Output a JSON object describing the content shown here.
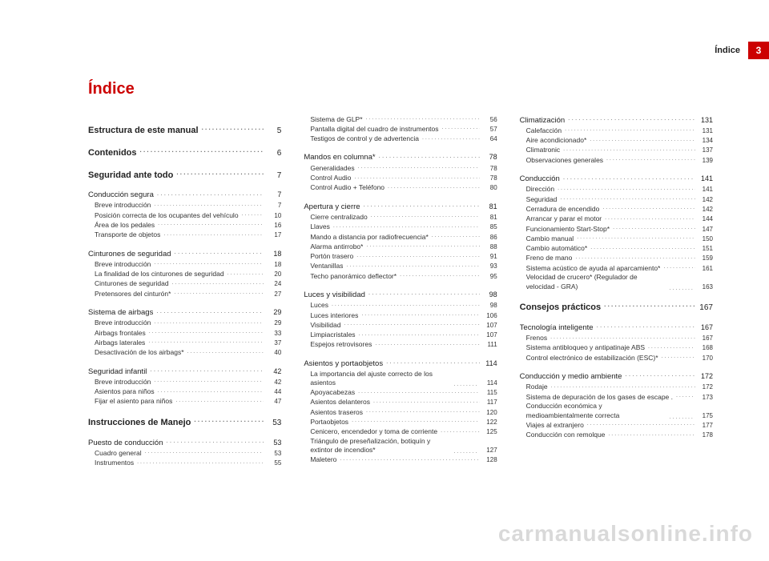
{
  "accent_color": "#cc0000",
  "page_label": "Índice",
  "page_number_box": "3",
  "title": "Índice",
  "watermark": "carmanualsonline.info",
  "columns": [
    [
      {
        "lvl": 0,
        "label": "Estructura de este manual",
        "page": "5"
      },
      {
        "lvl": 0,
        "label": "Contenidos",
        "page": "6"
      },
      {
        "lvl": 0,
        "label": "Seguridad ante todo",
        "page": "7"
      },
      {
        "lvl": 1,
        "label": "Conducción segura",
        "page": "7"
      },
      {
        "lvl": 2,
        "label": "Breve introducción",
        "page": "7"
      },
      {
        "lvl": 2,
        "label": "Posición correcta de los ocupantes del vehículo",
        "page": "10"
      },
      {
        "lvl": 2,
        "label": "Área de los pedales",
        "page": "16"
      },
      {
        "lvl": 2,
        "label": "Transporte de objetos",
        "page": "17"
      },
      {
        "lvl": 1,
        "label": "Cinturones de seguridad",
        "page": "18"
      },
      {
        "lvl": 2,
        "label": "Breve introducción",
        "page": "18"
      },
      {
        "lvl": 2,
        "label": "La finalidad de los cinturones de seguridad",
        "page": "20"
      },
      {
        "lvl": 2,
        "label": "Cinturones de seguridad",
        "page": "24"
      },
      {
        "lvl": 2,
        "label": "Pretensores del cinturón*",
        "page": "27"
      },
      {
        "lvl": 1,
        "label": "Sistema de airbags",
        "page": "29"
      },
      {
        "lvl": 2,
        "label": "Breve introducción",
        "page": "29"
      },
      {
        "lvl": 2,
        "label": "Airbags frontales",
        "page": "33"
      },
      {
        "lvl": 2,
        "label": "Airbags laterales",
        "page": "37"
      },
      {
        "lvl": 2,
        "label": "Desactivación de los airbags*",
        "page": "40"
      },
      {
        "lvl": 1,
        "label": "Seguridad infantil",
        "page": "42"
      },
      {
        "lvl": 2,
        "label": "Breve introducción",
        "page": "42"
      },
      {
        "lvl": 2,
        "label": "Asientos para niños",
        "page": "44"
      },
      {
        "lvl": 2,
        "label": "Fijar el asiento para niños",
        "page": "47"
      },
      {
        "lvl": 0,
        "label": "Instrucciones de Manejo",
        "page": "53"
      },
      {
        "lvl": 1,
        "label": "Puesto de conducción",
        "page": "53"
      },
      {
        "lvl": 2,
        "label": "Cuadro general",
        "page": "53"
      },
      {
        "lvl": 2,
        "label": "Instrumentos",
        "page": "55"
      }
    ],
    [
      {
        "lvl": 2,
        "label": "Sistema de GLP*",
        "page": "56"
      },
      {
        "lvl": 2,
        "label": "Pantalla digital del cuadro de instrumentos",
        "page": "57"
      },
      {
        "lvl": 2,
        "label": "Testigos de control y de advertencia",
        "page": "64"
      },
      {
        "lvl": 1,
        "label": "Mandos en columna*",
        "page": "78"
      },
      {
        "lvl": 2,
        "label": "Generalidades",
        "page": "78"
      },
      {
        "lvl": 2,
        "label": "Control Audio",
        "page": "78"
      },
      {
        "lvl": 2,
        "label": "Control Audio + Teléfono",
        "page": "80"
      },
      {
        "lvl": 1,
        "label": "Apertura y cierre",
        "page": "81"
      },
      {
        "lvl": 2,
        "label": "Cierre centralizado",
        "page": "81"
      },
      {
        "lvl": 2,
        "label": "Llaves",
        "page": "85"
      },
      {
        "lvl": 2,
        "label": "Mando a distancia por radiofrecuencia*",
        "page": "86"
      },
      {
        "lvl": 2,
        "label": "Alarma antirrobo*",
        "page": "88"
      },
      {
        "lvl": 2,
        "label": "Portón trasero",
        "page": "91"
      },
      {
        "lvl": 2,
        "label": "Ventanillas",
        "page": "93"
      },
      {
        "lvl": 2,
        "label": "Techo panorámico deflector*",
        "page": "95"
      },
      {
        "lvl": 1,
        "label": "Luces y visibilidad",
        "page": "98"
      },
      {
        "lvl": 2,
        "label": "Luces",
        "page": "98"
      },
      {
        "lvl": 2,
        "label": "Luces interiores",
        "page": "106"
      },
      {
        "lvl": 2,
        "label": "Visibilidad",
        "page": "107"
      },
      {
        "lvl": 2,
        "label": "Limpiacristales",
        "page": "107"
      },
      {
        "lvl": 2,
        "label": "Espejos retrovisores",
        "page": "111"
      },
      {
        "lvl": 1,
        "label": "Asientos y portaobjetos",
        "page": "114"
      },
      {
        "lvl": 2,
        "label": "La importancia del ajuste correcto de los asientos",
        "page": "114",
        "multiline": true
      },
      {
        "lvl": 2,
        "label": "Apoyacabezas",
        "page": "115"
      },
      {
        "lvl": 2,
        "label": "Asientos delanteros",
        "page": "117"
      },
      {
        "lvl": 2,
        "label": "Asientos traseros",
        "page": "120"
      },
      {
        "lvl": 2,
        "label": "Portaobjetos",
        "page": "122"
      },
      {
        "lvl": 2,
        "label": "Cenicero, encendedor y toma de corriente",
        "page": "125"
      },
      {
        "lvl": 2,
        "label": "Triángulo de preseñalización, botiquín y extintor de incendios*",
        "page": "127",
        "multiline": true
      },
      {
        "lvl": 2,
        "label": "Maletero",
        "page": "128"
      }
    ],
    [
      {
        "lvl": 1,
        "label": "Climatización",
        "page": "131",
        "notop": true
      },
      {
        "lvl": 2,
        "label": "Calefacción",
        "page": "131"
      },
      {
        "lvl": 2,
        "label": "Aire acondicionado*",
        "page": "134"
      },
      {
        "lvl": 2,
        "label": "Climatronic",
        "page": "137"
      },
      {
        "lvl": 2,
        "label": "Observaciones generales",
        "page": "139"
      },
      {
        "lvl": 1,
        "label": "Conducción",
        "page": "141"
      },
      {
        "lvl": 2,
        "label": "Dirección",
        "page": "141"
      },
      {
        "lvl": 2,
        "label": "Seguridad",
        "page": "142"
      },
      {
        "lvl": 2,
        "label": "Cerradura de encendido",
        "page": "142"
      },
      {
        "lvl": 2,
        "label": "Arrancar y parar el motor",
        "page": "144"
      },
      {
        "lvl": 2,
        "label": "Funcionamiento Start-Stop*",
        "page": "147"
      },
      {
        "lvl": 2,
        "label": "Cambio manual",
        "page": "150"
      },
      {
        "lvl": 2,
        "label": "Cambio automático*",
        "page": "151"
      },
      {
        "lvl": 2,
        "label": "Freno de mano",
        "page": "159"
      },
      {
        "lvl": 2,
        "label": "Sistema acústico de ayuda al aparcamiento*",
        "page": "161"
      },
      {
        "lvl": 2,
        "label": "Velocidad de crucero* (Regulador de velocidad - GRA)",
        "page": "163",
        "multiline": true
      },
      {
        "lvl": 0,
        "label": "Consejos prácticos",
        "page": "167"
      },
      {
        "lvl": 1,
        "label": "Tecnología inteligente",
        "page": "167"
      },
      {
        "lvl": 2,
        "label": "Frenos",
        "page": "167"
      },
      {
        "lvl": 2,
        "label": "Sistema antibloqueo y antipatinaje ABS",
        "page": "168"
      },
      {
        "lvl": 2,
        "label": "Control electrónico de estabilización (ESC)*",
        "page": "170"
      },
      {
        "lvl": 1,
        "label": "Conducción y medio ambiente",
        "page": "172"
      },
      {
        "lvl": 2,
        "label": "Rodaje",
        "page": "172"
      },
      {
        "lvl": 2,
        "label": "Sistema de depuración de los gases de escape .",
        "page": "173"
      },
      {
        "lvl": 2,
        "label": "Conducción económica y medioambientalmente correcta",
        "page": "175",
        "multiline": true
      },
      {
        "lvl": 2,
        "label": "Viajes al extranjero",
        "page": "177"
      },
      {
        "lvl": 2,
        "label": "Conducción con remolque",
        "page": "178"
      }
    ]
  ]
}
